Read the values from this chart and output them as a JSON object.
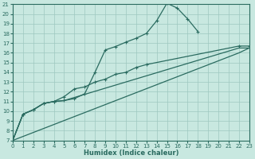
{
  "xlabel": "Humidex (Indice chaleur)",
  "xlim": [
    0,
    23
  ],
  "ylim": [
    7,
    21
  ],
  "xticks": [
    0,
    1,
    2,
    3,
    4,
    5,
    6,
    7,
    8,
    9,
    10,
    11,
    12,
    13,
    14,
    15,
    16,
    17,
    18,
    19,
    20,
    21,
    22,
    23
  ],
  "yticks": [
    7,
    8,
    9,
    10,
    11,
    12,
    13,
    14,
    15,
    16,
    17,
    18,
    19,
    20,
    21
  ],
  "bg_color": "#c8e8e0",
  "line_color": "#2a6b60",
  "grid_color": "#9ec8c0",
  "curve1_x": [
    0,
    1,
    2,
    3,
    4,
    5,
    6,
    7,
    8,
    9,
    10,
    11,
    12,
    13,
    14,
    15,
    16,
    17,
    18
  ],
  "curve1_y": [
    7.0,
    9.7,
    10.15,
    10.8,
    11.0,
    11.1,
    11.3,
    11.8,
    14.0,
    16.3,
    16.65,
    17.1,
    17.5,
    18.0,
    19.3,
    21.1,
    20.6,
    19.5,
    18.2
  ],
  "curve2_x": [
    0,
    1,
    2,
    3,
    4,
    5,
    6,
    7,
    8,
    9,
    10,
    11,
    12,
    13,
    22,
    23
  ],
  "curve2_y": [
    7.0,
    9.7,
    10.15,
    10.8,
    11.0,
    11.5,
    12.3,
    12.5,
    13.0,
    13.3,
    13.8,
    14.0,
    14.5,
    14.8,
    16.7,
    16.7
  ],
  "curve3_x": [
    0,
    1,
    2,
    3,
    4,
    5,
    22,
    23
  ],
  "curve3_y": [
    7.0,
    9.7,
    10.15,
    10.8,
    11.0,
    11.1,
    16.5,
    16.5
  ],
  "curve4_x": [
    0,
    22,
    23
  ],
  "curve4_y": [
    7.0,
    16.0,
    16.5
  ]
}
